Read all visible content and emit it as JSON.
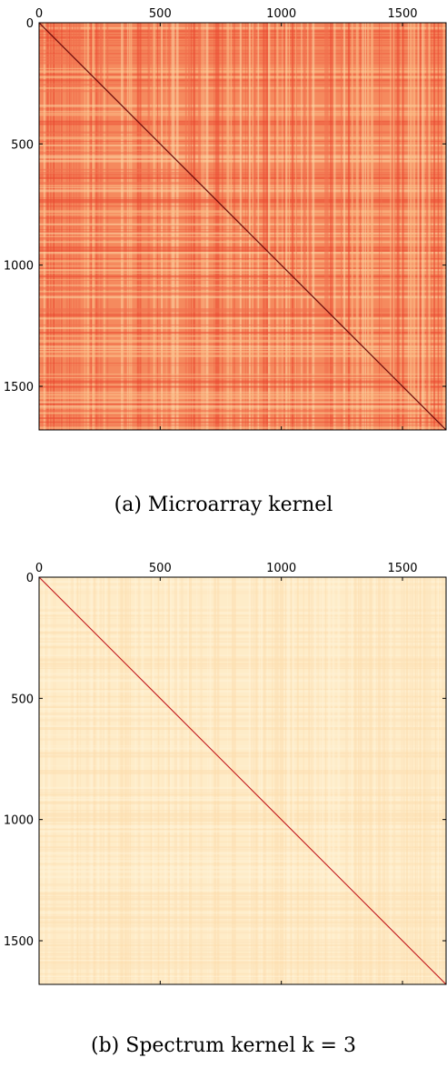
{
  "chart_data": [
    {
      "type": "heatmap",
      "title": "",
      "xlabel": "",
      "ylabel": "",
      "xlim": [
        0,
        1680
      ],
      "ylim": [
        0,
        1680
      ],
      "x_axis_position": "top",
      "y_axis_inverted": true,
      "xticks": [
        0,
        500,
        1000,
        1500
      ],
      "yticks": [
        0,
        500,
        1000,
        1500
      ],
      "xtick_labels": [
        "0",
        "500",
        "1000",
        "1500"
      ],
      "ytick_labels": [
        "0",
        "500",
        "1000",
        "1500"
      ],
      "colormap": [
        "#fff6d6",
        "#fcd6a0",
        "#f7a06e",
        "#ee6a4a",
        "#d43a2a",
        "#6a0a0a"
      ],
      "background_color": "#f58a5e",
      "stripe_colors": [
        "#fcc48e",
        "#e9472f",
        "#fbd9a8",
        "#f06e4c"
      ],
      "diagonal": {
        "from": 0,
        "to": 1680,
        "value": "max",
        "color": "#6a0a0a"
      },
      "caption": "(a) Microarray kernel"
    },
    {
      "type": "heatmap",
      "title": "",
      "xlabel": "",
      "ylabel": "",
      "xlim": [
        0,
        1680
      ],
      "ylim": [
        0,
        1680
      ],
      "x_axis_position": "top",
      "y_axis_inverted": true,
      "xticks": [
        0,
        500,
        1000,
        1500
      ],
      "yticks": [
        0,
        500,
        1000,
        1500
      ],
      "xtick_labels": [
        "0",
        "500",
        "1000",
        "1500"
      ],
      "ytick_labels": [
        "0",
        "500",
        "1000",
        "1500"
      ],
      "colormap": [
        "#fff6d6",
        "#fcd6a0",
        "#f7a06e",
        "#ee6a4a",
        "#d43a2a",
        "#6a0a0a"
      ],
      "background_color": "#feecc8",
      "stripe_colors": [
        "#fde3b8",
        "#fff4da",
        "#fcdcaa"
      ],
      "diagonal": {
        "from": 0,
        "to": 1680,
        "value": "max",
        "color": "#c0141a"
      },
      "caption": "(b) Spectrum kernel k = 3"
    }
  ]
}
